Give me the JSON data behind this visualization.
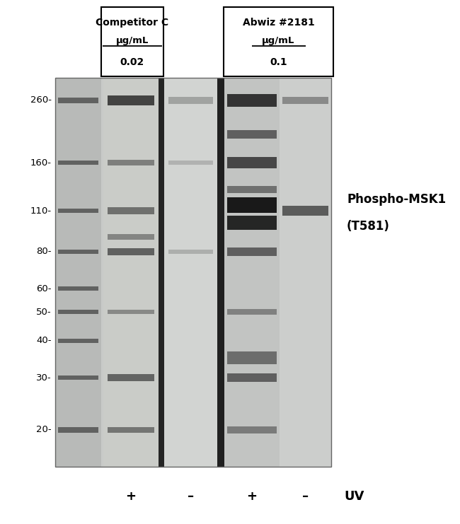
{
  "label_box1_title": "Competitor C",
  "label_box1_unit": "μg/mL",
  "label_box1_conc": "0.02",
  "label_box2_title": "Abwiz #2181",
  "label_box2_unit": "μg/mL",
  "label_box2_conc": "0.1",
  "mw_labels": [
    "260-",
    "160-",
    "110-",
    "80-",
    "60-",
    "50-",
    "40-",
    "30-",
    "20-"
  ],
  "mw_values": [
    260,
    160,
    110,
    80,
    60,
    50,
    40,
    30,
    20
  ],
  "uv_labels": [
    "+",
    "–",
    "+",
    "–",
    "UV"
  ],
  "annotation_line1": "Phospho-MSK1",
  "annotation_line2": "(T581)",
  "gel_bg": "#c8cac8",
  "marker_bg": "#b8bab8",
  "sep_color": "#252525",
  "lane1_bg": "#caccc8",
  "lane2_bg": "#d2d4d2",
  "gap_color": "#202020",
  "lane3_bg": "#c2c4c2",
  "lane4_bg": "#cccecc"
}
